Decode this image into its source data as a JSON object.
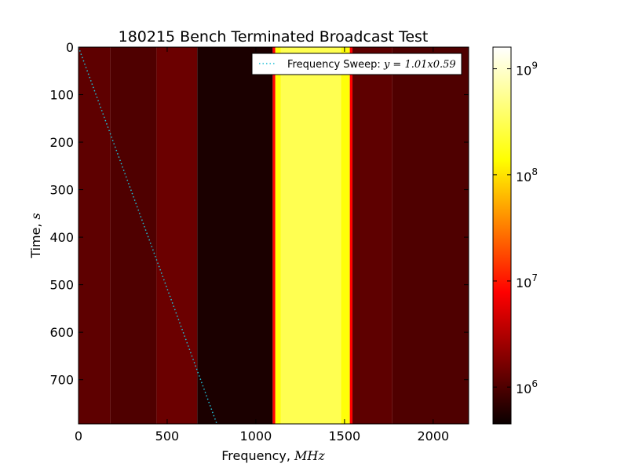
{
  "chart_data": {
    "type": "heatmap",
    "title": "180215 Bench Terminated Broadcast Test",
    "xlabel_text": "Frequency, ",
    "xlabel_math": "MHz",
    "ylabel_text": "Time, ",
    "ylabel_math": "s",
    "xlim": [
      0,
      2200
    ],
    "ylim": [
      793,
      0
    ],
    "x_ticks": [
      0,
      500,
      1000,
      1500,
      2000
    ],
    "y_ticks": [
      0,
      100,
      200,
      300,
      400,
      500,
      600,
      700
    ],
    "colorbar": {
      "scale": "log",
      "range": [
        450000,
        1600000000
      ],
      "ticks": [
        {
          "value": 1000000,
          "base": "10",
          "exp": "6"
        },
        {
          "value": 10000000,
          "base": "10",
          "exp": "7"
        },
        {
          "value": 100000000,
          "base": "10",
          "exp": "8"
        },
        {
          "value": 1000000000,
          "base": "10",
          "exp": "9"
        }
      ],
      "colormap": "hot"
    },
    "frequency_bands": [
      {
        "from": 0,
        "to": 180,
        "level": 1200000
      },
      {
        "from": 180,
        "to": 440,
        "level": 1000000
      },
      {
        "from": 440,
        "to": 670,
        "level": 1400000
      },
      {
        "from": 670,
        "to": 1095,
        "level": 550000
      },
      {
        "from": 1095,
        "to": 1110,
        "level": 8000000
      },
      {
        "from": 1110,
        "to": 1140,
        "level": 150000000
      },
      {
        "from": 1140,
        "to": 1480,
        "level": 300000000
      },
      {
        "from": 1480,
        "to": 1530,
        "level": 150000000
      },
      {
        "from": 1530,
        "to": 1545,
        "level": 8000000
      },
      {
        "from": 1545,
        "to": 1770,
        "level": 1200000
      },
      {
        "from": 1770,
        "to": 2200,
        "level": 1000000
      }
    ],
    "series": [
      {
        "name": "Frequency Sweep: ",
        "name_math": "y = 1.01x0.59",
        "style": "dotted",
        "color": "#1fbfd6",
        "x": [
          0,
          780
        ],
        "y": [
          0,
          793
        ]
      }
    ]
  }
}
